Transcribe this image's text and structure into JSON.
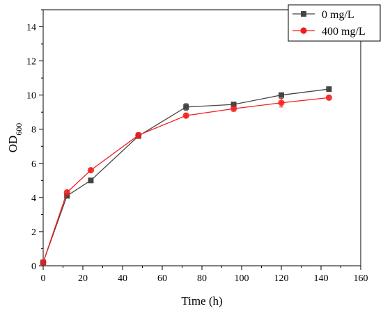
{
  "chart_data": {
    "type": "line",
    "xlabel": "Time (h)",
    "ylabel": "OD",
    "ylabel_subscript": "600",
    "xlim": [
      0,
      160
    ],
    "ylim": [
      0,
      15
    ],
    "xticks": [
      0,
      20,
      40,
      60,
      80,
      100,
      120,
      140,
      160
    ],
    "yticks": [
      0,
      2,
      4,
      6,
      8,
      10,
      12,
      14
    ],
    "x_tick_labels": [
      "0",
      "20",
      "40",
      "60",
      "80",
      "100",
      "120",
      "140",
      "160"
    ],
    "y_tick_labels": [
      "0",
      "2",
      "4",
      "6",
      "8",
      "10",
      "12",
      "14"
    ],
    "grid": false,
    "legend_position": "top-right",
    "x": [
      0,
      12,
      24,
      48,
      72,
      96,
      120,
      144
    ],
    "series": [
      {
        "name": "0 mg/L",
        "color": "#454545",
        "marker": "square",
        "values": [
          0.2,
          4.1,
          5.0,
          7.6,
          9.3,
          9.45,
          10.0,
          10.35
        ],
        "errors": [
          0,
          0,
          0,
          0.1,
          0.2,
          0.1,
          0.1,
          0.1
        ]
      },
      {
        "name": "400 mg/L",
        "color": "#f21c1c",
        "marker": "circle",
        "values": [
          0.2,
          4.3,
          5.6,
          7.65,
          8.8,
          9.2,
          9.55,
          9.85
        ],
        "errors": [
          0,
          0.1,
          0.1,
          0.15,
          0.1,
          0.15,
          0.25,
          0.1
        ]
      }
    ]
  }
}
